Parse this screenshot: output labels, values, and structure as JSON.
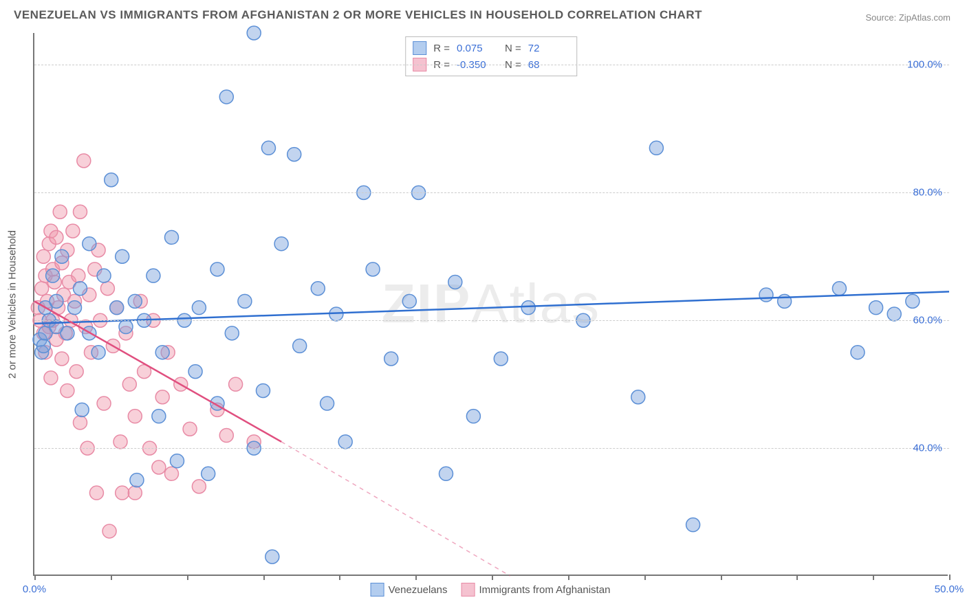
{
  "title": "VENEZUELAN VS IMMIGRANTS FROM AFGHANISTAN 2 OR MORE VEHICLES IN HOUSEHOLD CORRELATION CHART",
  "source": "Source: ZipAtlas.com",
  "yaxis_label": "2 or more Vehicles in Household",
  "watermark_a": "ZIP",
  "watermark_b": "Atlas",
  "xlim": [
    0,
    50
  ],
  "ylim": [
    20,
    105
  ],
  "xticks_major": [
    0,
    50
  ],
  "xticks_minor": [
    4.17,
    8.33,
    12.5,
    16.67,
    20.83,
    25,
    29.17,
    33.33,
    37.5,
    41.67,
    45.83
  ],
  "xtick_labels": {
    "0": "0.0%",
    "50": "50.0%"
  },
  "yticks": [
    40,
    60,
    80,
    100
  ],
  "ytick_labels": {
    "40": "40.0%",
    "60": "60.0%",
    "80": "80.0%",
    "100": "100.0%"
  },
  "series": {
    "blue": {
      "label": "Venezuelans",
      "fill": "rgba(120,160,220,0.45)",
      "stroke": "#5b8fd6",
      "line_color": "#2f6fd0",
      "R": "0.075",
      "N": "72",
      "trend": {
        "x1": 0,
        "y1": 59.5,
        "x2": 50,
        "y2": 64.5
      },
      "points": [
        [
          0.3,
          57
        ],
        [
          0.4,
          55
        ],
        [
          0.5,
          56
        ],
        [
          0.6,
          58
        ],
        [
          0.6,
          62
        ],
        [
          0.8,
          60
        ],
        [
          1.0,
          67
        ],
        [
          1.2,
          63
        ],
        [
          1.2,
          59
        ],
        [
          1.5,
          70
        ],
        [
          1.8,
          58
        ],
        [
          2.2,
          62
        ],
        [
          2.5,
          65
        ],
        [
          2.6,
          46
        ],
        [
          3.0,
          72
        ],
        [
          3.0,
          58
        ],
        [
          3.5,
          55
        ],
        [
          3.8,
          67
        ],
        [
          4.2,
          82
        ],
        [
          4.5,
          62
        ],
        [
          4.8,
          70
        ],
        [
          5.0,
          59
        ],
        [
          5.5,
          63
        ],
        [
          5.6,
          35
        ],
        [
          6.0,
          60
        ],
        [
          6.5,
          67
        ],
        [
          6.8,
          45
        ],
        [
          7.0,
          55
        ],
        [
          7.5,
          73
        ],
        [
          7.8,
          38
        ],
        [
          8.2,
          60
        ],
        [
          8.8,
          52
        ],
        [
          9.0,
          62
        ],
        [
          9.5,
          36
        ],
        [
          10.0,
          68
        ],
        [
          10.0,
          47
        ],
        [
          10.5,
          95
        ],
        [
          10.8,
          58
        ],
        [
          11.5,
          63
        ],
        [
          12.0,
          105
        ],
        [
          12.0,
          40
        ],
        [
          12.5,
          49
        ],
        [
          12.8,
          87
        ],
        [
          13.0,
          23
        ],
        [
          13.5,
          72
        ],
        [
          14.2,
          86
        ],
        [
          14.5,
          56
        ],
        [
          15.5,
          65
        ],
        [
          16.0,
          47
        ],
        [
          16.5,
          61
        ],
        [
          17.0,
          41
        ],
        [
          18.0,
          80
        ],
        [
          18.5,
          68
        ],
        [
          19.5,
          54
        ],
        [
          20.5,
          63
        ],
        [
          21.0,
          80
        ],
        [
          22.5,
          36
        ],
        [
          23.0,
          66
        ],
        [
          24.0,
          45
        ],
        [
          25.5,
          54
        ],
        [
          27.0,
          62
        ],
        [
          30.0,
          60
        ],
        [
          33.0,
          48
        ],
        [
          34.0,
          87
        ],
        [
          36.0,
          28
        ],
        [
          40.0,
          64
        ],
        [
          41.0,
          63
        ],
        [
          44.0,
          65
        ],
        [
          45.0,
          55
        ],
        [
          46.0,
          62
        ],
        [
          47.0,
          61
        ],
        [
          48.0,
          63
        ]
      ]
    },
    "pink": {
      "label": "Immigrants from Afghanistan",
      "fill": "rgba(240,150,170,0.45)",
      "stroke": "#e88aa5",
      "line_color": "#e04f7f",
      "R": "-0.350",
      "N": "68",
      "trend_solid": {
        "x1": 0,
        "y1": 63,
        "x2": 13.5,
        "y2": 41
      },
      "trend_dash": {
        "x1": 13.5,
        "y1": 41,
        "x2": 26,
        "y2": 20
      },
      "points": [
        [
          0.2,
          62
        ],
        [
          0.3,
          60
        ],
        [
          0.4,
          65
        ],
        [
          0.5,
          58
        ],
        [
          0.5,
          70
        ],
        [
          0.6,
          67
        ],
        [
          0.6,
          55
        ],
        [
          0.7,
          63
        ],
        [
          0.8,
          72
        ],
        [
          0.8,
          59
        ],
        [
          0.9,
          74
        ],
        [
          0.9,
          51
        ],
        [
          1.0,
          68
        ],
        [
          1.0,
          60
        ],
        [
          1.1,
          66
        ],
        [
          1.2,
          57
        ],
        [
          1.2,
          73
        ],
        [
          1.3,
          62
        ],
        [
          1.4,
          77
        ],
        [
          1.5,
          54
        ],
        [
          1.5,
          69
        ],
        [
          1.6,
          64
        ],
        [
          1.7,
          58
        ],
        [
          1.8,
          71
        ],
        [
          1.8,
          49
        ],
        [
          1.9,
          66
        ],
        [
          2.0,
          60
        ],
        [
          2.1,
          74
        ],
        [
          2.2,
          63
        ],
        [
          2.3,
          52
        ],
        [
          2.4,
          67
        ],
        [
          2.5,
          44
        ],
        [
          2.5,
          77
        ],
        [
          2.7,
          85
        ],
        [
          2.8,
          59
        ],
        [
          2.9,
          40
        ],
        [
          3.0,
          64
        ],
        [
          3.1,
          55
        ],
        [
          3.3,
          68
        ],
        [
          3.4,
          33
        ],
        [
          3.5,
          71
        ],
        [
          3.6,
          60
        ],
        [
          3.8,
          47
        ],
        [
          4.0,
          65
        ],
        [
          4.1,
          27
        ],
        [
          4.3,
          56
        ],
        [
          4.5,
          62
        ],
        [
          4.7,
          41
        ],
        [
          4.8,
          33
        ],
        [
          5.0,
          58
        ],
        [
          5.2,
          50
        ],
        [
          5.5,
          45
        ],
        [
          5.5,
          33
        ],
        [
          5.8,
          63
        ],
        [
          6.0,
          52
        ],
        [
          6.3,
          40
        ],
        [
          6.5,
          60
        ],
        [
          6.8,
          37
        ],
        [
          7.0,
          48
        ],
        [
          7.3,
          55
        ],
        [
          7.5,
          36
        ],
        [
          8.0,
          50
        ],
        [
          8.5,
          43
        ],
        [
          9.0,
          34
        ],
        [
          10.0,
          46
        ],
        [
          10.5,
          42
        ],
        [
          11.0,
          50
        ],
        [
          12.0,
          41
        ]
      ]
    }
  },
  "marker_radius": 10,
  "legend_swatch_blue_fill": "#b3cdef",
  "legend_swatch_blue_border": "#5b8fd6",
  "legend_swatch_pink_fill": "#f5c2d0",
  "legend_swatch_pink_border": "#e88aa5",
  "grid_color": "#cccccc",
  "axis_color": "#777777",
  "tick_label_color": "#3b6fd6"
}
